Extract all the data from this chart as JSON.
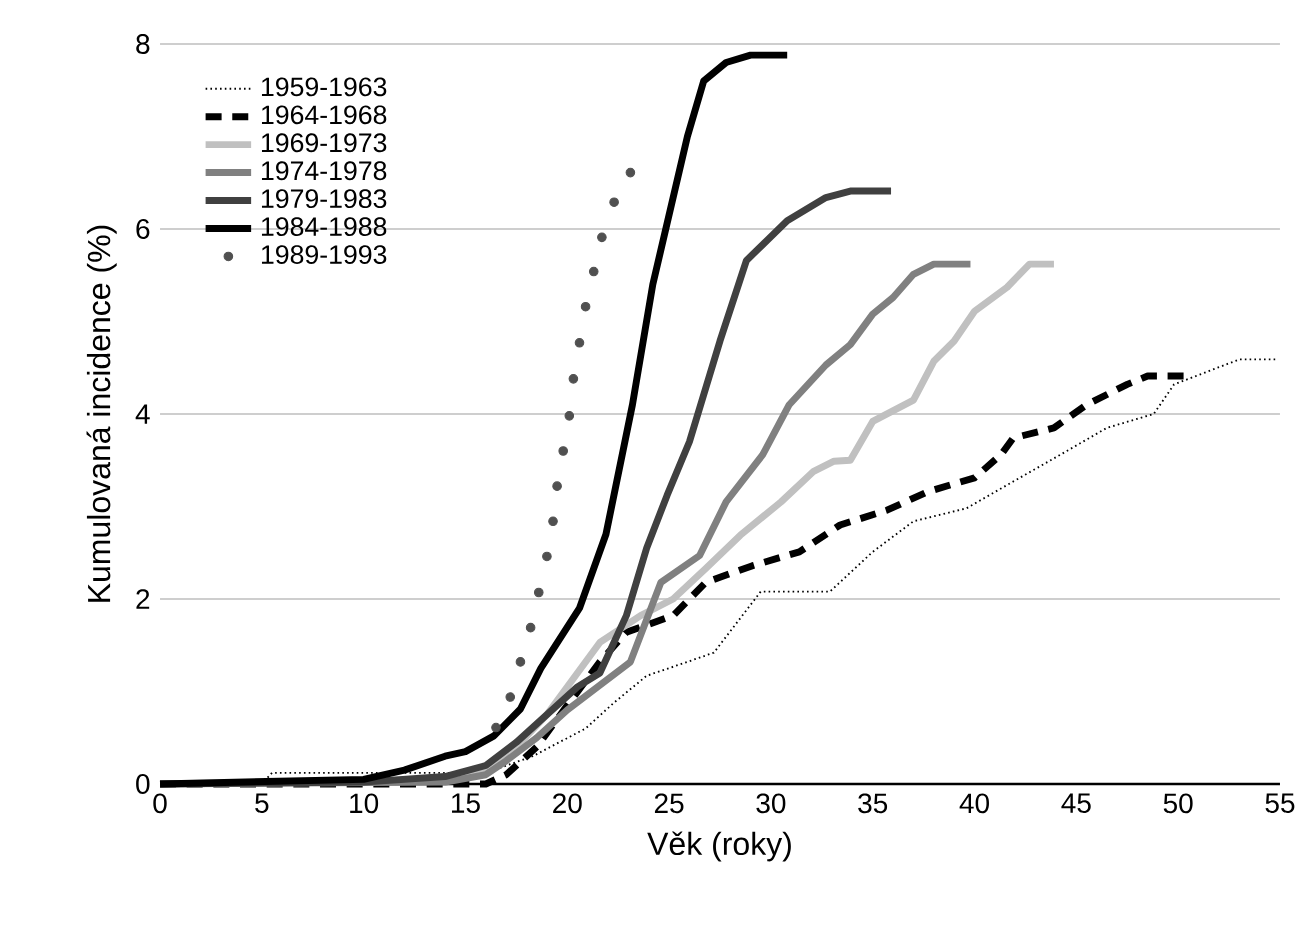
{
  "chart_data": {
    "type": "line",
    "xlabel": "Věk  (roky)",
    "ylabel": "Kumulovaná  incidence (%)",
    "xlim": [
      0,
      55
    ],
    "ylim": [
      0,
      8
    ],
    "xticks": [
      0,
      5,
      10,
      15,
      20,
      25,
      30,
      35,
      40,
      45,
      50,
      55
    ],
    "yticks": [
      0,
      2,
      4,
      6,
      8
    ],
    "grid": "y",
    "legend": "top left",
    "series": [
      {
        "name": "1959-1963",
        "color": "#000000",
        "line_style": "dotted",
        "x": [
          0,
          5,
          5.5,
          16,
          18.3,
          20.9,
          22.3,
          23.9,
          25.9,
          27.2,
          29.5,
          32.9,
          35,
          37,
          39.6,
          41.9,
          43.9,
          46.5,
          48.8,
          49.8,
          53,
          54.8
        ],
        "values": [
          0,
          0,
          0.12,
          0.12,
          0.3,
          0.6,
          0.88,
          1.17,
          1.32,
          1.42,
          2.08,
          2.08,
          2.51,
          2.84,
          2.98,
          3.27,
          3.52,
          3.85,
          4.0,
          4.32,
          4.59,
          4.59
        ]
      },
      {
        "name": "1964-1968",
        "color": "#000000",
        "line_style": "dashed",
        "x": [
          0,
          16,
          17,
          18.5,
          20,
          21.6,
          22.9,
          25.2,
          26.8,
          29.1,
          31.4,
          33.4,
          35.7,
          37.7,
          40,
          41.3,
          41.9,
          43.9,
          45.5,
          47.5,
          48.5,
          50.6
        ],
        "values": [
          0,
          0,
          0.1,
          0.4,
          0.85,
          1.32,
          1.64,
          1.82,
          2.18,
          2.36,
          2.51,
          2.8,
          2.96,
          3.16,
          3.31,
          3.56,
          3.74,
          3.85,
          4.1,
          4.32,
          4.41,
          4.41
        ]
      },
      {
        "name": "1969-1973",
        "color": "#c0c0c0",
        "line_style": "solid",
        "x": [
          0,
          14,
          16,
          17.5,
          19,
          20.5,
          21.6,
          23.6,
          25.2,
          26.8,
          28.5,
          30.5,
          32.1,
          33.1,
          33.9,
          35,
          37,
          38,
          39,
          40,
          41.6,
          42.7,
          43.9
        ],
        "values": [
          0,
          0.05,
          0.15,
          0.4,
          0.75,
          1.2,
          1.53,
          1.82,
          2.0,
          2.33,
          2.69,
          3.05,
          3.38,
          3.49,
          3.5,
          3.92,
          4.15,
          4.57,
          4.79,
          5.11,
          5.37,
          5.62,
          5.62
        ]
      },
      {
        "name": "1974-1978",
        "color": "#808080",
        "line_style": "solid",
        "x": [
          0,
          14,
          16,
          17,
          18.5,
          20,
          21.5,
          23.1,
          24.6,
          26.5,
          27.8,
          29.6,
          30.9,
          32.7,
          33.9,
          35,
          36,
          37,
          38,
          39.8
        ],
        "values": [
          0,
          0.02,
          0.1,
          0.25,
          0.5,
          0.8,
          1.05,
          1.32,
          2.18,
          2.47,
          3.05,
          3.56,
          4.1,
          4.53,
          4.75,
          5.08,
          5.26,
          5.51,
          5.62,
          5.62
        ]
      },
      {
        "name": "1979-1983",
        "color": "#404040",
        "line_style": "solid",
        "x": [
          0,
          10,
          14,
          16,
          17.5,
          19,
          20.5,
          21.6,
          22.9,
          23.9,
          24.9,
          26,
          27.5,
          28.8,
          30.8,
          32.7,
          33.9,
          35.9
        ],
        "values": [
          0,
          0.02,
          0.08,
          0.2,
          0.45,
          0.75,
          1.05,
          1.2,
          1.82,
          2.55,
          3.12,
          3.7,
          4.79,
          5.66,
          6.09,
          6.34,
          6.41,
          6.41
        ]
      },
      {
        "name": "1984-1988",
        "color": "#000000",
        "line_style": "solid",
        "x": [
          0,
          10,
          12,
          14,
          15,
          16.4,
          17.7,
          18.7,
          20.6,
          21.9,
          23.2,
          24.2,
          25.9,
          26.7,
          27.8,
          29,
          30.8
        ],
        "values": [
          0,
          0.05,
          0.15,
          0.3,
          0.35,
          0.52,
          0.81,
          1.25,
          1.9,
          2.7,
          4.1,
          5.4,
          7.0,
          7.6,
          7.8,
          7.88,
          7.88
        ]
      },
      {
        "name": "1989-1993",
        "color": "#505050",
        "type": "scatter",
        "marker": "circle",
        "x": [
          16.5,
          17.2,
          17.7,
          18.2,
          18.6,
          19.0,
          19.3,
          19.5,
          19.8,
          20.1,
          20.3,
          20.6,
          20.9,
          21.3,
          21.7,
          22.3,
          23.1
        ],
        "values": [
          0.61,
          0.94,
          1.32,
          1.69,
          2.07,
          2.46,
          2.84,
          3.22,
          3.6,
          3.98,
          4.38,
          4.77,
          5.16,
          5.54,
          5.91,
          6.29,
          6.61
        ]
      }
    ]
  }
}
